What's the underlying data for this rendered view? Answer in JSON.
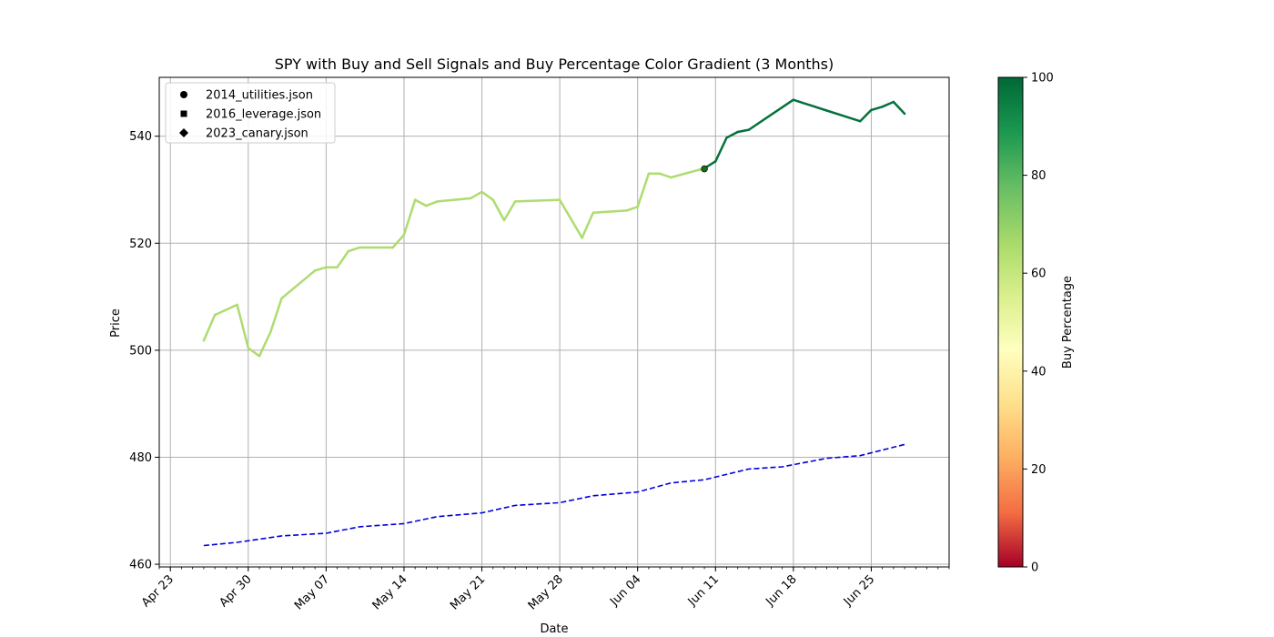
{
  "chart_data": {
    "type": "line",
    "title": "SPY with Buy and Sell Signals and Buy Percentage Color Gradient (3 Months)",
    "xlabel": "Date",
    "ylabel": "Price",
    "xlim": [
      "2024-04-22",
      "2024-07-02"
    ],
    "ylim": [
      459.5,
      551
    ],
    "grid": true,
    "x_ticks": [
      {
        "date": "2024-04-23",
        "label": "Apr 23"
      },
      {
        "date": "2024-04-30",
        "label": "Apr 30"
      },
      {
        "date": "2024-05-07",
        "label": "May 07"
      },
      {
        "date": "2024-05-14",
        "label": "May 14"
      },
      {
        "date": "2024-05-21",
        "label": "May 21"
      },
      {
        "date": "2024-05-28",
        "label": "May 28"
      },
      {
        "date": "2024-06-04",
        "label": "Jun 04"
      },
      {
        "date": "2024-06-11",
        "label": "Jun 11"
      },
      {
        "date": "2024-06-18",
        "label": "Jun 18"
      },
      {
        "date": "2024-06-25",
        "label": "Jun 25"
      }
    ],
    "y_ticks": [
      460,
      480,
      500,
      520,
      540
    ],
    "price_series": {
      "points": [
        [
          "2024-04-26",
          501.8
        ],
        [
          "2024-04-27",
          506.6
        ],
        [
          "2024-04-29",
          508.5
        ],
        [
          "2024-04-30",
          500.4
        ],
        [
          "2024-05-01",
          498.9
        ],
        [
          "2024-05-02",
          503.4
        ],
        [
          "2024-05-03",
          509.7
        ],
        [
          "2024-05-06",
          514.9
        ],
        [
          "2024-05-07",
          515.5
        ],
        [
          "2024-05-08",
          515.5
        ],
        [
          "2024-05-09",
          518.5
        ],
        [
          "2024-05-10",
          519.2
        ],
        [
          "2024-05-13",
          519.2
        ],
        [
          "2024-05-14",
          521.6
        ],
        [
          "2024-05-15",
          528.1
        ],
        [
          "2024-05-16",
          527.0
        ],
        [
          "2024-05-17",
          527.8
        ],
        [
          "2024-05-20",
          528.4
        ],
        [
          "2024-05-21",
          529.6
        ],
        [
          "2024-05-22",
          528.1
        ],
        [
          "2024-05-23",
          524.3
        ],
        [
          "2024-05-24",
          527.8
        ],
        [
          "2024-05-28",
          528.1
        ],
        [
          "2024-05-30",
          521.0
        ],
        [
          "2024-05-31",
          525.7
        ],
        [
          "2024-06-03",
          526.1
        ],
        [
          "2024-06-04",
          526.8
        ],
        [
          "2024-06-05",
          533.0
        ],
        [
          "2024-06-06",
          533.0
        ],
        [
          "2024-06-07",
          532.3
        ],
        [
          "2024-06-10",
          534.0
        ],
        [
          "2024-06-11",
          535.3
        ],
        [
          "2024-06-12",
          539.7
        ],
        [
          "2024-06-13",
          540.8
        ],
        [
          "2024-06-14",
          541.2
        ],
        [
          "2024-06-18",
          546.8
        ],
        [
          "2024-06-21",
          544.8
        ],
        [
          "2024-06-24",
          542.8
        ],
        [
          "2024-06-25",
          544.9
        ],
        [
          "2024-06-26",
          545.5
        ],
        [
          "2024-06-27",
          546.4
        ],
        [
          "2024-06-28",
          544.2
        ]
      ],
      "buy_percentage": [
        65,
        65,
        65,
        65,
        65,
        65,
        65,
        65,
        65,
        65,
        65,
        65,
        65,
        65,
        65,
        65,
        65,
        65,
        65,
        65,
        65,
        65,
        65,
        65,
        65,
        65,
        65,
        65,
        65,
        65,
        98,
        98,
        98,
        98,
        98,
        98,
        98,
        98,
        98,
        98,
        98,
        98
      ]
    },
    "moving_average": {
      "style": "dashed",
      "color": "#0000dd",
      "points": [
        [
          "2024-04-26",
          463.5
        ],
        [
          "2024-04-29",
          464.1
        ],
        [
          "2024-05-02",
          465.0
        ],
        [
          "2024-05-03",
          465.3
        ],
        [
          "2024-05-07",
          465.8
        ],
        [
          "2024-05-10",
          467.0
        ],
        [
          "2024-05-14",
          467.6
        ],
        [
          "2024-05-17",
          468.9
        ],
        [
          "2024-05-21",
          469.6
        ],
        [
          "2024-05-24",
          471.0
        ],
        [
          "2024-05-28",
          471.5
        ],
        [
          "2024-05-31",
          472.8
        ],
        [
          "2024-06-04",
          473.5
        ],
        [
          "2024-06-07",
          475.2
        ],
        [
          "2024-06-10",
          475.8
        ],
        [
          "2024-06-14",
          477.8
        ],
        [
          "2024-06-17",
          478.2
        ],
        [
          "2024-06-21",
          479.8
        ],
        [
          "2024-06-24",
          480.3
        ],
        [
          "2024-06-28",
          482.4
        ]
      ]
    },
    "signals": [
      {
        "date": "2024-06-10",
        "price": 533.9,
        "marker": "circle",
        "series": "2014_utilities.json"
      }
    ],
    "legend": {
      "position": "top-left",
      "entries": [
        {
          "label": "2014_utilities.json",
          "marker": "circle"
        },
        {
          "label": "2016_leverage.json",
          "marker": "square"
        },
        {
          "label": "2023_canary.json",
          "marker": "diamond"
        }
      ]
    },
    "colorbar": {
      "label": "Buy Percentage",
      "range": [
        0,
        100
      ],
      "ticks": [
        0,
        20,
        40,
        60,
        80,
        100
      ],
      "colormap": "RdYlGn",
      "stops": [
        "#a50026",
        "#f46d43",
        "#fdae61",
        "#fee08b",
        "#ffffbf",
        "#d9ef8b",
        "#a6d96a",
        "#66bd63",
        "#1a9850",
        "#006837"
      ]
    }
  }
}
